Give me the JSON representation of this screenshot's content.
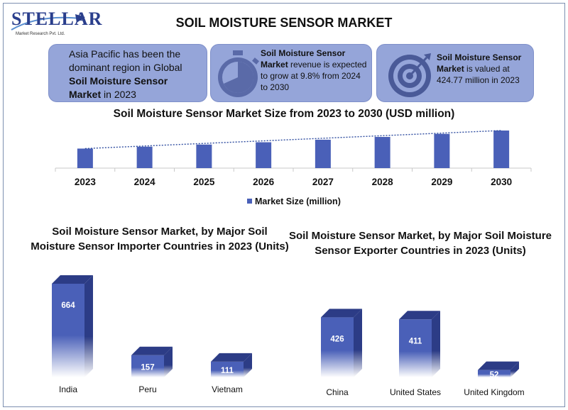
{
  "header": {
    "title": "SOIL MOISTURE SENSOR MARKET",
    "logo_text": "STELLAR",
    "logo_subtext": "Market Research Pvt. Ltd."
  },
  "info_cards": [
    {
      "pre": "Asia Pacific has been the dominant region in Global ",
      "bold": "Soil Moisture Sensor Market",
      "post": " in 2023",
      "icon": "none"
    },
    {
      "pre": "",
      "bold": "Soil Moisture Sensor Market",
      "post": " revenue is expected to grow at 9.8% from 2024 to 2030",
      "icon": "stopwatch-icon"
    },
    {
      "pre": "",
      "bold": "Soil Moisture Sensor Market",
      "post": " is valued at 424.77 million in 2023",
      "icon": "target-icon"
    }
  ],
  "colors": {
    "card_bg": "#95a5d9",
    "bar": "#4a60b8",
    "bar_dark": "#2c3c86",
    "trend": "#2f4da0"
  },
  "chart_data": [
    {
      "type": "bar",
      "title": "Soil Moisture Sensor Market Size from 2023 to 2030 (USD million)",
      "categories": [
        "2023",
        "2024",
        "2025",
        "2026",
        "2027",
        "2028",
        "2029",
        "2030"
      ],
      "series": [
        {
          "name": "Market Size (million)",
          "values": [
            424.77,
            466.4,
            512.1,
            562.3,
            617.4,
            677.9,
            744.3,
            817.2
          ]
        }
      ],
      "trendline": "dotted linear",
      "ylim": [
        0,
        900
      ],
      "legend": "bottom",
      "grid": false
    },
    {
      "type": "bar",
      "title": "Soil Moisture Sensor Market, by Major Soil Moisture Sensor Importer Countries in 2023 (Units)",
      "categories": [
        "India",
        "Peru",
        "Vietnam"
      ],
      "values": [
        664,
        157,
        111
      ],
      "data_labels": true,
      "style": "3d"
    },
    {
      "type": "bar",
      "title": "Soil Moisture Sensor Market, by Major Soil Moisture Sensor Exporter Countries in 2023 (Units)",
      "categories": [
        "China",
        "United States",
        "United Kingdom"
      ],
      "values": [
        426,
        411,
        52
      ],
      "data_labels": true,
      "style": "3d"
    }
  ]
}
